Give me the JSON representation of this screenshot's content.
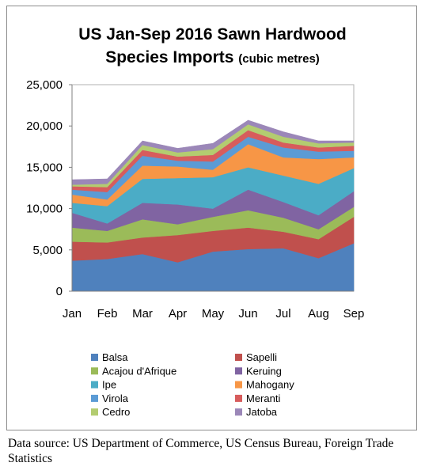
{
  "chart_data": {
    "type": "area",
    "stacked": true,
    "title": "US Jan-Sep 2016 Sawn Hardwood",
    "title_line2": "Species Imports",
    "title_unit": "(cubic metres)",
    "categories": [
      "Jan",
      "Feb",
      "Mar",
      "Apr",
      "May",
      "Jun",
      "Jul",
      "Aug",
      "Sep"
    ],
    "ylim": [
      0,
      25000
    ],
    "yticks": [
      "0",
      "5,000",
      "10,000",
      "15,000",
      "20,000",
      "25,000"
    ],
    "ytick_values": [
      0,
      5000,
      10000,
      15000,
      20000,
      25000
    ],
    "grid": false,
    "legend_position": "bottom",
    "series": [
      {
        "name": "Balsa",
        "color": "#4f81bd",
        "values": [
          3700,
          3900,
          4500,
          3500,
          4800,
          5100,
          5200,
          4000,
          5800
        ]
      },
      {
        "name": "Sapelli",
        "color": "#c0504d",
        "values": [
          2300,
          2000,
          2000,
          3300,
          2500,
          2600,
          2000,
          2300,
          3200
        ]
      },
      {
        "name": "Acajou d'Afrique",
        "color": "#9bbb59",
        "values": [
          1700,
          1400,
          2200,
          1300,
          1700,
          2100,
          1700,
          1200,
          1200
        ]
      },
      {
        "name": "Keruing",
        "color": "#8064a2",
        "values": [
          1800,
          900,
          2000,
          2400,
          1000,
          2500,
          1900,
          1700,
          1900
        ]
      },
      {
        "name": "Ipe",
        "color": "#4bacc6",
        "values": [
          1200,
          2100,
          2900,
          3200,
          3800,
          2700,
          3200,
          3800,
          2800
        ]
      },
      {
        "name": "Mahogany",
        "color": "#f79646",
        "values": [
          1000,
          800,
          1600,
          1400,
          900,
          2800,
          2200,
          3000,
          1300
        ]
      },
      {
        "name": "Virola",
        "color": "#5b9bd5",
        "values": [
          600,
          900,
          1200,
          700,
          1000,
          900,
          1200,
          900,
          800
        ]
      },
      {
        "name": "Meranti",
        "color": "#d75c5c",
        "values": [
          400,
          600,
          700,
          500,
          800,
          800,
          600,
          500,
          600
        ]
      },
      {
        "name": "Cedro",
        "color": "#b3cc70",
        "values": [
          200,
          400,
          600,
          500,
          700,
          700,
          700,
          500,
          400
        ]
      },
      {
        "name": "Jatoba",
        "color": "#9b87b8",
        "values": [
          600,
          600,
          500,
          500,
          700,
          500,
          600,
          300,
          200
        ]
      }
    ]
  },
  "source_note": "Data source: US Department of Commerce, US Census Bureau, Foreign Trade Statistics"
}
